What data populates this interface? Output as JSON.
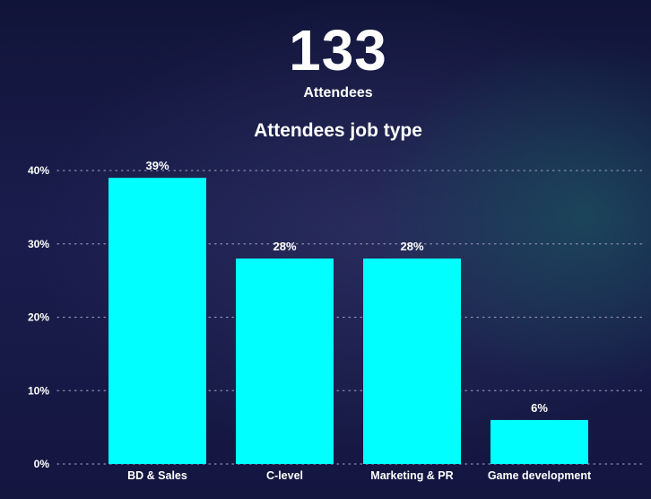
{
  "stat": {
    "value": "133",
    "label": "Attendees"
  },
  "chart_data": {
    "type": "bar",
    "title": "Attendees job type",
    "categories": [
      "BD & Sales",
      "C-level",
      "Marketing & PR",
      "Game development"
    ],
    "values": [
      39,
      28,
      28,
      6
    ],
    "data_labels": [
      "39%",
      "28%",
      "28%",
      "6%"
    ],
    "y_ticks": [
      0,
      10,
      20,
      30,
      40
    ],
    "y_tick_labels": [
      "0%",
      "10%",
      "20%",
      "30%",
      "40%"
    ],
    "ylim": [
      0,
      40
    ],
    "xlabel": "",
    "ylabel": "",
    "grid": true,
    "legend": "none",
    "colors": {
      "bar": "#00ffff",
      "grid": "#8a8fb0",
      "text": "#ffffff"
    }
  }
}
